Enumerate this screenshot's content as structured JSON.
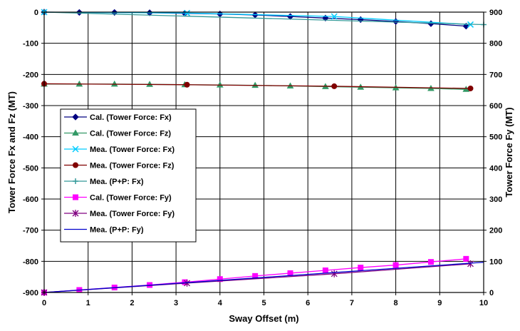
{
  "chart_data": {
    "type": "line",
    "xlabel": "Sway Offset (m)",
    "ylabel_left": "Tower Force Fx and Fz (MT)",
    "ylabel_right": "Tower Force Fy (MT)",
    "xlim": [
      0,
      10
    ],
    "ylim_left": [
      -900,
      0
    ],
    "ylim_right": [
      0,
      900
    ],
    "x_ticks": [
      "0",
      "1",
      "2",
      "3",
      "4",
      "5",
      "6",
      "7",
      "8",
      "9",
      "10"
    ],
    "y_left_ticks": [
      "0",
      "-100",
      "-200",
      "-300",
      "-400",
      "-500",
      "-600",
      "-700",
      "-800",
      "-900"
    ],
    "y_right_ticks": [
      "900",
      "800",
      "700",
      "600",
      "500",
      "400",
      "300",
      "200",
      "100",
      "0"
    ],
    "grid": true,
    "legend_position": "left-middle",
    "series": [
      {
        "name": "Cal. (Tower Force: Fx)",
        "axis": "left",
        "color": "#000080",
        "marker": "diamond",
        "line": true,
        "x": [
          0,
          0.8,
          1.6,
          2.4,
          3.2,
          4.0,
          4.8,
          5.6,
          6.4,
          7.2,
          8.0,
          8.8,
          9.6
        ],
        "y": [
          0,
          -1,
          -1,
          -2,
          -4,
          -6,
          -9,
          -14,
          -19,
          -24,
          -30,
          -37,
          -45
        ]
      },
      {
        "name": "Cal. (Tower Force: Fz)",
        "axis": "left",
        "color": "#339966",
        "marker": "triangle",
        "line": true,
        "x": [
          0,
          0.8,
          1.6,
          2.4,
          3.2,
          4.0,
          4.8,
          5.6,
          6.4,
          7.2,
          8.0,
          8.8,
          9.6
        ],
        "y": [
          -231,
          -231,
          -231,
          -232,
          -233,
          -234,
          -235,
          -237,
          -239,
          -241,
          -243,
          -245,
          -248
        ]
      },
      {
        "name": "Mea. (Tower Force: Fx)",
        "axis": "left",
        "color": "#00CCFF",
        "marker": "x",
        "line": true,
        "x": [
          0,
          3.25,
          6.6,
          9.7
        ],
        "y": [
          0,
          -3,
          -14,
          -40
        ]
      },
      {
        "name": "Mea. (Tower Force: Fz)",
        "axis": "left",
        "color": "#800000",
        "marker": "circle",
        "line": true,
        "x": [
          0,
          3.25,
          6.6,
          9.7
        ],
        "y": [
          -230,
          -233,
          -238,
          -245
        ]
      },
      {
        "name": "Mea. (P+P: Fx)",
        "axis": "left",
        "color": "#339999",
        "marker": "plus",
        "line": true,
        "x": [
          0,
          10
        ],
        "y": [
          0,
          -40
        ]
      },
      {
        "name": "Cal. (Tower Force: Fy)",
        "axis": "right",
        "color": "#FF00FF",
        "marker": "square",
        "line": true,
        "x": [
          0,
          0.8,
          1.6,
          2.4,
          3.2,
          4.0,
          4.8,
          5.6,
          6.4,
          7.2,
          8.0,
          8.8,
          9.6
        ],
        "y": [
          0,
          8,
          16,
          24,
          33,
          43,
          53,
          62,
          71,
          80,
          88,
          98,
          108
        ]
      },
      {
        "name": "Mea. (Tower Force: Fy)",
        "axis": "right",
        "color": "#800080",
        "marker": "star",
        "line": true,
        "x": [
          0,
          3.25,
          6.6,
          9.7
        ],
        "y": [
          0,
          30,
          60,
          92
        ]
      },
      {
        "name": "Mea. (P+P: Fy)",
        "axis": "right",
        "color": "#0000CC",
        "marker": "none",
        "line": true,
        "x": [
          0,
          10
        ],
        "y": [
          0,
          97
        ]
      }
    ]
  }
}
